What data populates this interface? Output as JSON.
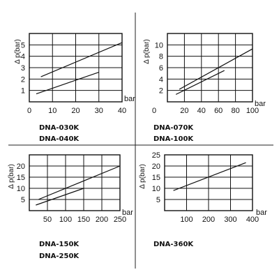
{
  "chart_data": [
    {
      "type": "line",
      "ylabel": "Δ p(bar)",
      "xlabel": "bar",
      "xlim": [
        0,
        40
      ],
      "ylim": [
        0,
        6
      ],
      "xticks": [
        0,
        10,
        20,
        30,
        40
      ],
      "yticks": [
        1,
        2,
        3,
        4,
        5
      ],
      "grid": true,
      "models": [
        "DNA-030K",
        "DNA-040K"
      ],
      "series": [
        {
          "x": [
            5,
            40
          ],
          "y": [
            2.2,
            5.2
          ]
        },
        {
          "x": [
            3,
            30
          ],
          "y": [
            0.7,
            2.6
          ]
        }
      ]
    },
    {
      "type": "line",
      "ylabel": "Δ p(bar)",
      "xlabel": "bar",
      "xlim": [
        0,
        100
      ],
      "ylim": [
        0,
        12
      ],
      "xticks": [
        20,
        40,
        60,
        80,
        100
      ],
      "yticks": [
        2,
        4,
        6,
        8,
        10
      ],
      "xtick_labels_extra": [
        "0"
      ],
      "grid": true,
      "models": [
        "DNA-070K",
        "DNA-100K"
      ],
      "series": [
        {
          "x": [
            14,
            100
          ],
          "y": [
            2.2,
            9.3
          ]
        },
        {
          "x": [
            10,
            67
          ],
          "y": [
            1.3,
            5.5
          ]
        }
      ]
    },
    {
      "type": "line",
      "ylabel": "Δ p(bar)",
      "xlabel": "bar",
      "xlim": [
        0,
        250
      ],
      "ylim": [
        0,
        25
      ],
      "xticks": [
        50,
        100,
        150,
        200,
        250
      ],
      "yticks": [
        5,
        10,
        15,
        20
      ],
      "grid": true,
      "models": [
        "DNA-150K",
        "DNA-250K"
      ],
      "series": [
        {
          "x": [
            25,
            250
          ],
          "y": [
            5,
            20
          ]
        },
        {
          "x": [
            18,
            150
          ],
          "y": [
            2.5,
            10
          ]
        }
      ]
    },
    {
      "type": "line",
      "ylabel": "Δ p(bar)",
      "xlabel": "bar",
      "xlim": [
        0,
        400
      ],
      "ylim": [
        0,
        25
      ],
      "xticks": [
        100,
        200,
        300,
        400
      ],
      "yticks": [
        5,
        10,
        15,
        20,
        25
      ],
      "grid": true,
      "models": [
        "DNA-360K"
      ],
      "series": [
        {
          "x": [
            40,
            370
          ],
          "y": [
            9,
            21.5
          ]
        }
      ]
    }
  ]
}
